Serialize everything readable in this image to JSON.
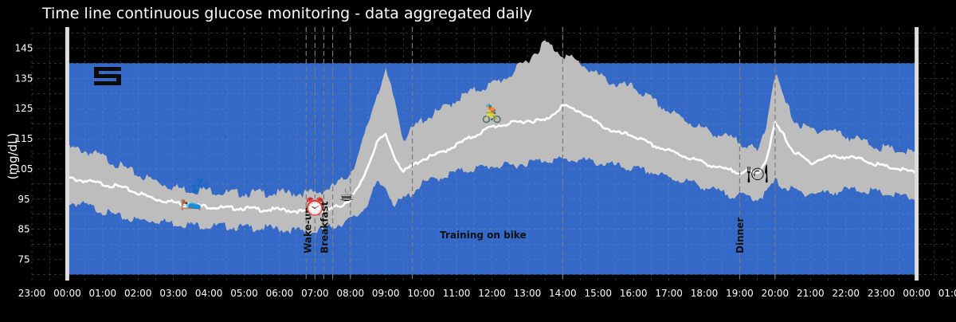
{
  "chart_data": {
    "type": "area",
    "title": "Time line continuous glucose monitoring - data aggregated daily",
    "ylabel": "(mg/dL)",
    "xlabel": "",
    "ylim": [
      68,
      152
    ],
    "xlim_hours": [
      -1,
      25
    ],
    "target_range": [
      70,
      140
    ],
    "y_ticks": [
      75,
      85,
      95,
      105,
      115,
      125,
      135,
      145
    ],
    "x_tick_labels": [
      "23:00",
      "00:00",
      "01:00",
      "02:00",
      "03:00",
      "04:00",
      "05:00",
      "06:00",
      "07:00",
      "08:00",
      "09:00",
      "10:00",
      "11:00",
      "12:00",
      "13:00",
      "14:00",
      "15:00",
      "16:00",
      "17:00",
      "18:00",
      "19:00",
      "20:00",
      "21:00",
      "22:00",
      "23:00",
      "00:00",
      "01:00"
    ],
    "series": [
      {
        "name": "median",
        "x_hours": [
          0,
          0.5,
          1,
          1.5,
          2,
          2.5,
          3,
          3.5,
          4,
          4.5,
          5,
          5.5,
          6,
          6.5,
          7,
          7.25,
          7.5,
          7.75,
          8,
          8.25,
          8.5,
          8.75,
          9,
          9.25,
          9.5,
          9.75,
          10,
          10.5,
          11,
          11.5,
          12,
          12.5,
          13,
          13.5,
          14,
          14.5,
          15,
          15.5,
          16,
          16.5,
          17,
          17.5,
          18,
          18.5,
          19,
          19.25,
          19.5,
          19.75,
          20,
          20.25,
          20.5,
          20.75,
          21,
          21.5,
          22,
          22.5,
          23,
          23.5,
          24
        ],
        "values": [
          102,
          101,
          100,
          99,
          97,
          95,
          94,
          93,
          92.5,
          92,
          92,
          91.5,
          91.5,
          91,
          90.5,
          91,
          92,
          93,
          95,
          99,
          106,
          114,
          116,
          109,
          104,
          106,
          108,
          110,
          113,
          116,
          119,
          120,
          121,
          121,
          126,
          124,
          120,
          117,
          116,
          113,
          111,
          109,
          107,
          105,
          104,
          104,
          103.5,
          108,
          120,
          116,
          111,
          109,
          107,
          109,
          109,
          108,
          106,
          105,
          103.5
        ]
      },
      {
        "name": "band_upper",
        "x_hours": [
          0,
          0.5,
          1,
          1.5,
          2,
          2.5,
          3,
          3.5,
          4,
          4.5,
          5,
          5.5,
          6,
          6.5,
          7,
          7.25,
          7.5,
          7.75,
          8,
          8.25,
          8.5,
          8.75,
          9,
          9.25,
          9.5,
          9.75,
          10,
          10.5,
          11,
          11.5,
          12,
          12.5,
          13,
          13.5,
          14,
          14.5,
          15,
          15.5,
          16,
          16.5,
          17,
          17.5,
          18,
          18.5,
          19,
          19.25,
          19.5,
          19.75,
          20,
          20.25,
          20.5,
          20.75,
          21,
          21.5,
          22,
          22.5,
          23,
          23.5,
          24
        ],
        "values": [
          112,
          111,
          109,
          106,
          103,
          101,
          99,
          98,
          98,
          97,
          97,
          97,
          97,
          97,
          97,
          98,
          99,
          101,
          104,
          110,
          120,
          130,
          137,
          128,
          115,
          118,
          121,
          124,
          128,
          131,
          133,
          136,
          141,
          147,
          143,
          140,
          136,
          133,
          132,
          128,
          124,
          121,
          118,
          116,
          114,
          113,
          110,
          120,
          137,
          128,
          122,
          119,
          118,
          118,
          116,
          114,
          112,
          111,
          110
        ]
      },
      {
        "name": "band_lower",
        "x_hours": [
          0,
          0.5,
          1,
          1.5,
          2,
          2.5,
          3,
          3.5,
          4,
          4.5,
          5,
          5.5,
          6,
          6.5,
          7,
          7.25,
          7.5,
          7.75,
          8,
          8.25,
          8.5,
          8.75,
          9,
          9.25,
          9.5,
          9.75,
          10,
          10.5,
          11,
          11.5,
          12,
          12.5,
          13,
          13.5,
          14,
          14.5,
          15,
          15.5,
          16,
          16.5,
          17,
          17.5,
          18,
          18.5,
          19,
          19.25,
          19.5,
          19.75,
          20,
          20.25,
          20.5,
          20.75,
          21,
          21.5,
          22,
          22.5,
          23,
          23.5,
          24
        ],
        "values": [
          94,
          93,
          91,
          89,
          88,
          88,
          87,
          86.5,
          86,
          86,
          85.5,
          85.5,
          85,
          84.5,
          84,
          85,
          86,
          87,
          88,
          90,
          94,
          100,
          99,
          93,
          95,
          97,
          100,
          102,
          104,
          105,
          106,
          106,
          107,
          108,
          108,
          108,
          107,
          106,
          105,
          104,
          102,
          101,
          99,
          97,
          96,
          96,
          95,
          97,
          101,
          99,
          98,
          97,
          97,
          97,
          98,
          98,
          97,
          96,
          95
        ]
      }
    ],
    "events": [
      {
        "label": "Wake-up",
        "hour": 7.25
      },
      {
        "label": "Breakfast",
        "hour": 7.75
      },
      {
        "label": "Training on bike",
        "hour": 11.75
      },
      {
        "label": "Dinner",
        "hour": 19.1
      }
    ],
    "event_lines_hours": [
      6.75,
      7.0,
      7.25,
      7.5,
      8.0,
      9.75,
      14.0,
      19.0,
      20.0
    ],
    "icons": [
      {
        "name": "sleep",
        "glyph": "🛌",
        "hour": 3.5,
        "value": 94
      },
      {
        "name": "zzz",
        "glyph": "💤",
        "hour": 3.75,
        "value": 99
      },
      {
        "name": "alarm-clock",
        "glyph": "⏰",
        "hour": 7.0,
        "value": 92
      },
      {
        "name": "coffee",
        "glyph": "☕",
        "hour": 7.9,
        "value": 96
      },
      {
        "name": "bike",
        "glyph": "🚴",
        "hour": 12.0,
        "value": 123
      },
      {
        "name": "dinner",
        "glyph": "🍽",
        "hour": 19.5,
        "value": 103
      }
    ],
    "colors": {
      "background": "#000000",
      "target_band": "#3569c7",
      "range_band": "#bdbdbd",
      "median": "#ffffff",
      "grid": "#8a94a8",
      "axis_edge": "#dddddd"
    }
  }
}
